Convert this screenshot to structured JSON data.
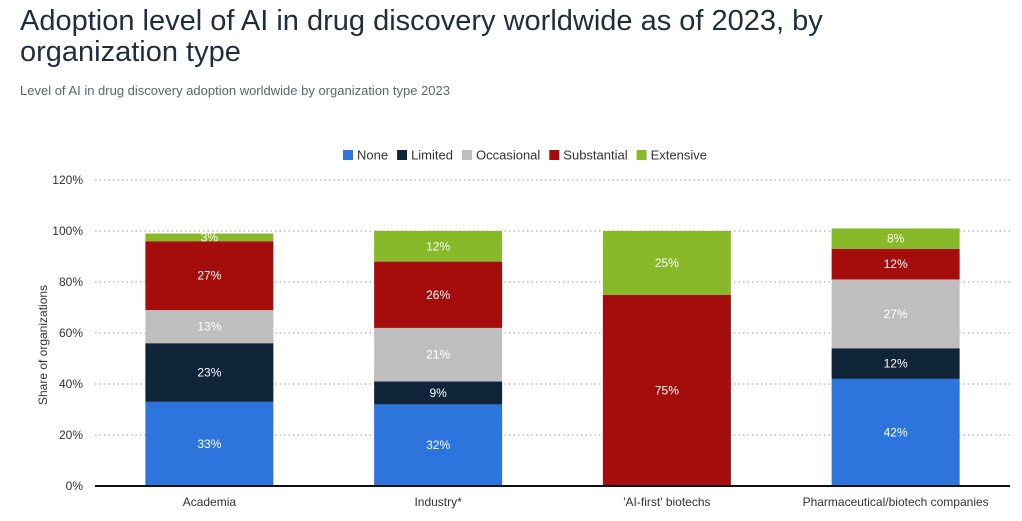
{
  "header": {
    "title": "Adoption level of AI in drug discovery worldwide as of 2023, by organization type",
    "subtitle": "Level of AI in drug discovery adoption worldwide by organization type 2023"
  },
  "chart_data": {
    "type": "bar",
    "stacked": true,
    "categories": [
      "Academia",
      "Industry*",
      "'AI-first' biotechs",
      "Pharmaceutical/biotech companies"
    ],
    "series": [
      {
        "name": "None",
        "color": "#2e74dd",
        "values": [
          33,
          32,
          0,
          42
        ],
        "labels": [
          "33%",
          "32%",
          "",
          "42%"
        ]
      },
      {
        "name": "Limited",
        "color": "#10253a",
        "values": [
          23,
          9,
          0,
          12
        ],
        "labels": [
          "23%",
          "9%",
          "",
          "12%"
        ]
      },
      {
        "name": "Occasional",
        "color": "#bebebe",
        "values": [
          13,
          21,
          0,
          27
        ],
        "labels": [
          "13%",
          "21%",
          "",
          "27%"
        ]
      },
      {
        "name": "Substantial",
        "color": "#a50d0d",
        "values": [
          27,
          26,
          75,
          12
        ],
        "labels": [
          "27%",
          "26%",
          "75%",
          "12%"
        ]
      },
      {
        "name": "Extensive",
        "color": "#87b929",
        "values": [
          3,
          12,
          25,
          8
        ],
        "labels": [
          "3%",
          "12%",
          "25%",
          "8%"
        ]
      }
    ],
    "ylabel": "Share of organizations",
    "ylim": [
      0,
      120
    ],
    "yticks": [
      0,
      20,
      40,
      60,
      80,
      100,
      120
    ],
    "ytick_labels": [
      "0%",
      "20%",
      "40%",
      "60%",
      "80%",
      "100%",
      "120%"
    ],
    "grid": true,
    "legend_position": "top-center"
  }
}
